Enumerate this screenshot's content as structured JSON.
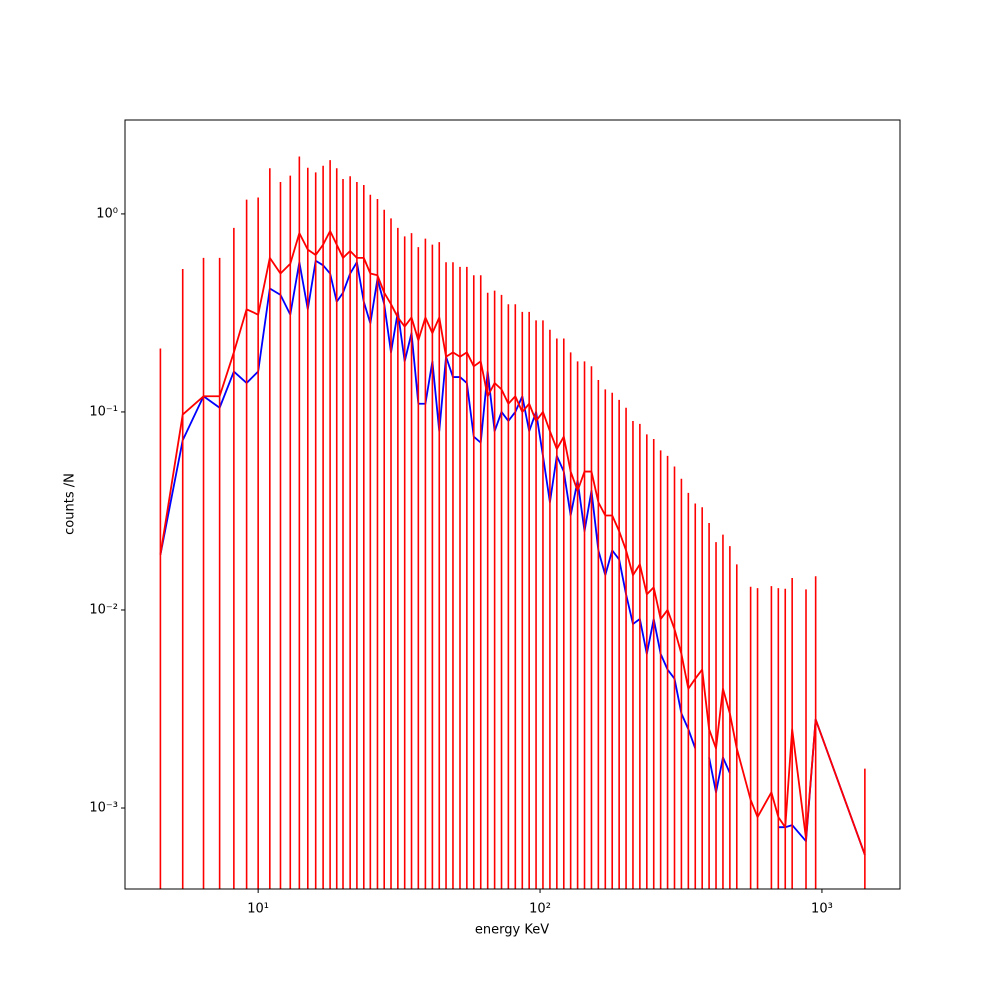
{
  "chart_data": {
    "type": "line",
    "xlabel": "energy KeV",
    "ylabel": "counts /N",
    "xscale": "log",
    "yscale": "log",
    "xlim": [
      3.37,
      1892
    ],
    "ylim": [
      0.00039,
      2.98
    ],
    "xticks": [
      {
        "value": 10,
        "label": "10¹"
      },
      {
        "value": 100,
        "label": "10²"
      },
      {
        "value": 1000,
        "label": "10³"
      }
    ],
    "yticks": [
      {
        "value": 0.001,
        "label": "10⁻³"
      },
      {
        "value": 0.01,
        "label": "10⁻²"
      },
      {
        "value": 0.1,
        "label": "10⁻¹"
      },
      {
        "value": 1,
        "label": "10⁰"
      }
    ],
    "x": [
      4.5,
      5.4,
      6.4,
      7.3,
      8.2,
      9.1,
      10,
      11,
      12,
      13,
      14,
      15,
      16,
      17,
      18,
      19,
      20,
      21.2,
      22.4,
      23.7,
      25,
      26.5,
      28,
      29.6,
      31.3,
      33.1,
      35,
      37,
      39.2,
      41.5,
      43.9,
      46.4,
      49.1,
      52,
      55,
      58.2,
      61.6,
      65.2,
      69,
      73,
      77.2,
      81.7,
      86.5,
      91.5,
      96.8,
      102.4,
      108.4,
      114.7,
      121.4,
      128.4,
      135.9,
      143.8,
      152.2,
      161,
      170.4,
      180.3,
      190.8,
      201.9,
      213.6,
      226,
      239.2,
      253.1,
      267.8,
      283.4,
      299.9,
      317.3,
      335.8,
      355.3,
      376,
      397.8,
      421,
      445.5,
      471.4,
      498.8,
      558.5,
      591,
      661.8,
      700.3,
      741,
      784.1,
      878,
      950,
      1420
    ],
    "series": [
      {
        "color": "#0000ff",
        "values": [
          0.019,
          0.072,
          0.12,
          0.105,
          0.16,
          0.14,
          0.16,
          0.42,
          0.39,
          0.31,
          0.57,
          0.33,
          0.58,
          0.55,
          0.5,
          0.36,
          0.4,
          0.5,
          0.57,
          0.36,
          0.28,
          0.47,
          0.35,
          0.2,
          0.32,
          0.18,
          0.25,
          0.11,
          0.11,
          0.18,
          0.08,
          0.19,
          0.15,
          0.15,
          0.14,
          0.075,
          0.07,
          0.16,
          0.08,
          0.1,
          0.09,
          0.1,
          0.12,
          0.08,
          0.1,
          0.06,
          0.035,
          0.06,
          0.05,
          0.03,
          0.045,
          0.025,
          0.04,
          0.02,
          0.015,
          0.02,
          0.018,
          0.012,
          0.0085,
          0.009,
          0.006,
          0.009,
          0.006,
          0.005,
          0.0045,
          0.003,
          0.0025,
          0.002,
          null,
          0.0018,
          0.0012,
          0.0018,
          0.0015,
          null,
          null,
          null,
          null,
          0.0008,
          0.0008,
          0.00082,
          0.00068,
          0.0028,
          0.00058
        ]
      },
      {
        "color": "#ff0000",
        "values": [
          0.019,
          0.097,
          0.12,
          0.12,
          0.2,
          0.33,
          0.31,
          0.6,
          0.5,
          0.56,
          0.8,
          0.66,
          0.62,
          0.7,
          0.82,
          0.7,
          0.6,
          0.65,
          0.6,
          0.6,
          0.5,
          0.49,
          0.4,
          0.35,
          0.3,
          0.27,
          0.3,
          0.23,
          0.3,
          0.25,
          0.3,
          0.19,
          0.2,
          0.19,
          0.2,
          0.17,
          0.18,
          0.12,
          0.14,
          0.13,
          0.11,
          0.12,
          0.1,
          0.11,
          0.09,
          0.1,
          0.08,
          0.065,
          0.075,
          0.05,
          0.04,
          0.05,
          0.05,
          0.035,
          0.03,
          0.03,
          0.025,
          0.02,
          0.015,
          0.017,
          0.012,
          0.013,
          0.009,
          0.01,
          0.008,
          0.006,
          0.004,
          0.0045,
          0.005,
          0.0025,
          0.002,
          0.004,
          0.003,
          0.002,
          0.0011,
          0.0009,
          0.0012,
          0.0009,
          0.0008,
          0.0025,
          0.0007,
          0.0028,
          0.00058
        ],
        "errors": [
          0.19,
          0.43,
          0.48,
          0.48,
          0.65,
          0.85,
          0.9,
          1.1,
          0.95,
          1.0,
          1.15,
          1.05,
          1.0,
          1.05,
          1.05,
          1.0,
          0.9,
          0.9,
          0.85,
          0.8,
          0.75,
          0.7,
          0.65,
          0.6,
          0.55,
          0.5,
          0.5,
          0.45,
          0.45,
          0.45,
          0.42,
          0.38,
          0.37,
          0.35,
          0.34,
          0.32,
          0.31,
          0.28,
          0.27,
          0.26,
          0.24,
          0.23,
          0.22,
          0.21,
          0.2,
          0.19,
          0.18,
          0.17,
          0.16,
          0.15,
          0.14,
          0.13,
          0.12,
          0.11,
          0.1,
          0.095,
          0.09,
          0.085,
          0.075,
          0.07,
          0.065,
          0.06,
          0.055,
          0.05,
          0.045,
          0.04,
          0.035,
          0.03,
          0.028,
          0.025,
          0.02,
          0.02,
          0.018,
          0.015,
          0.012,
          0.012,
          0.012,
          0.012,
          0.012,
          0.012,
          0.012,
          0.012,
          0.001
        ]
      }
    ]
  }
}
